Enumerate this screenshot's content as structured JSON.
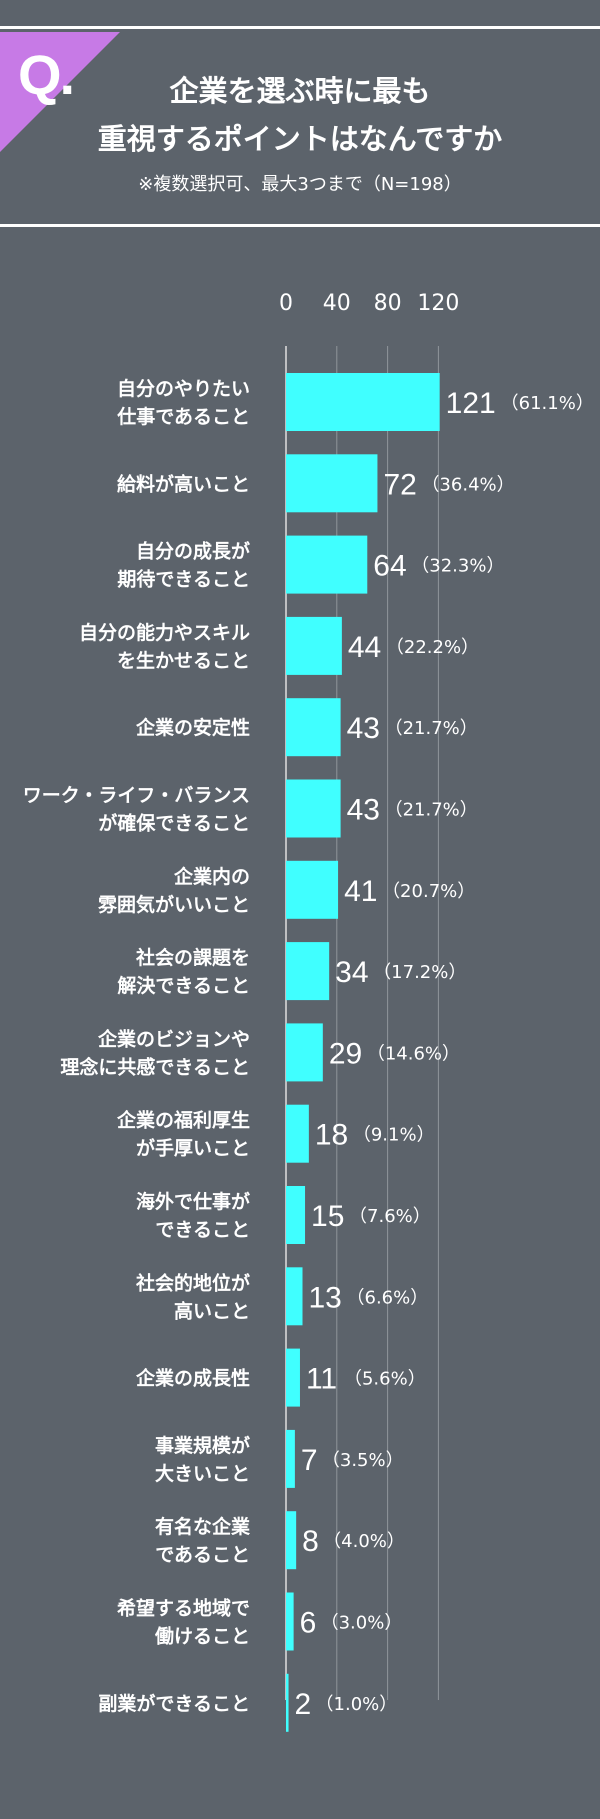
{
  "header": {
    "q_label": "Q.",
    "title_line1": "企業を選ぶ時に最も",
    "title_line2": "重視するポイントはなんですか",
    "subtitle": "※複数選択可、最大3つまで（N=198）"
  },
  "colors": {
    "background": "#5c636b",
    "bar": "#40ffff",
    "accent": "#c77ae6",
    "text": "#ffffff"
  },
  "chart_data": {
    "type": "bar",
    "orientation": "horizontal",
    "title": "企業を選ぶ時に最も重視するポイントはなんですか",
    "x_ticks": [
      0,
      40,
      80,
      120
    ],
    "xlim": [
      0,
      120
    ],
    "grid": true,
    "categories": [
      [
        "自分のやりたい",
        "仕事であること"
      ],
      [
        "給料が高いこと"
      ],
      [
        "自分の成長が",
        "期待できること"
      ],
      [
        "自分の能力やスキル",
        "を生かせること"
      ],
      [
        "企業の安定性"
      ],
      [
        "ワーク・ライフ・バランス",
        "が確保できること"
      ],
      [
        "企業内の",
        "雰囲気がいいこと"
      ],
      [
        "社会の課題を",
        "解決できること"
      ],
      [
        "企業のビジョンや",
        "理念に共感できること"
      ],
      [
        "企業の福利厚生",
        "が手厚いこと"
      ],
      [
        "海外で仕事が",
        "できること"
      ],
      [
        "社会的地位が",
        "高いこと"
      ],
      [
        "企業の成長性"
      ],
      [
        "事業規模が",
        "大きいこと"
      ],
      [
        "有名な企業",
        "であること"
      ],
      [
        "希望する地域で",
        "働けること"
      ],
      [
        "副業ができること"
      ]
    ],
    "values": [
      121,
      72,
      64,
      44,
      43,
      43,
      41,
      34,
      29,
      18,
      15,
      13,
      11,
      7,
      8,
      6,
      2
    ],
    "percents": [
      "（61.1%）",
      "（36.4%）",
      "（32.3%）",
      "（22.2%）",
      "（21.7%）",
      "（21.7%）",
      "（20.7%）",
      "（17.2%）",
      "（14.6%）",
      "（9.1%）",
      "（7.6%）",
      "（6.6%）",
      "（5.6%）",
      "（3.5%）",
      "（4.0%）",
      "（3.0%）",
      "（1.0%）"
    ]
  }
}
